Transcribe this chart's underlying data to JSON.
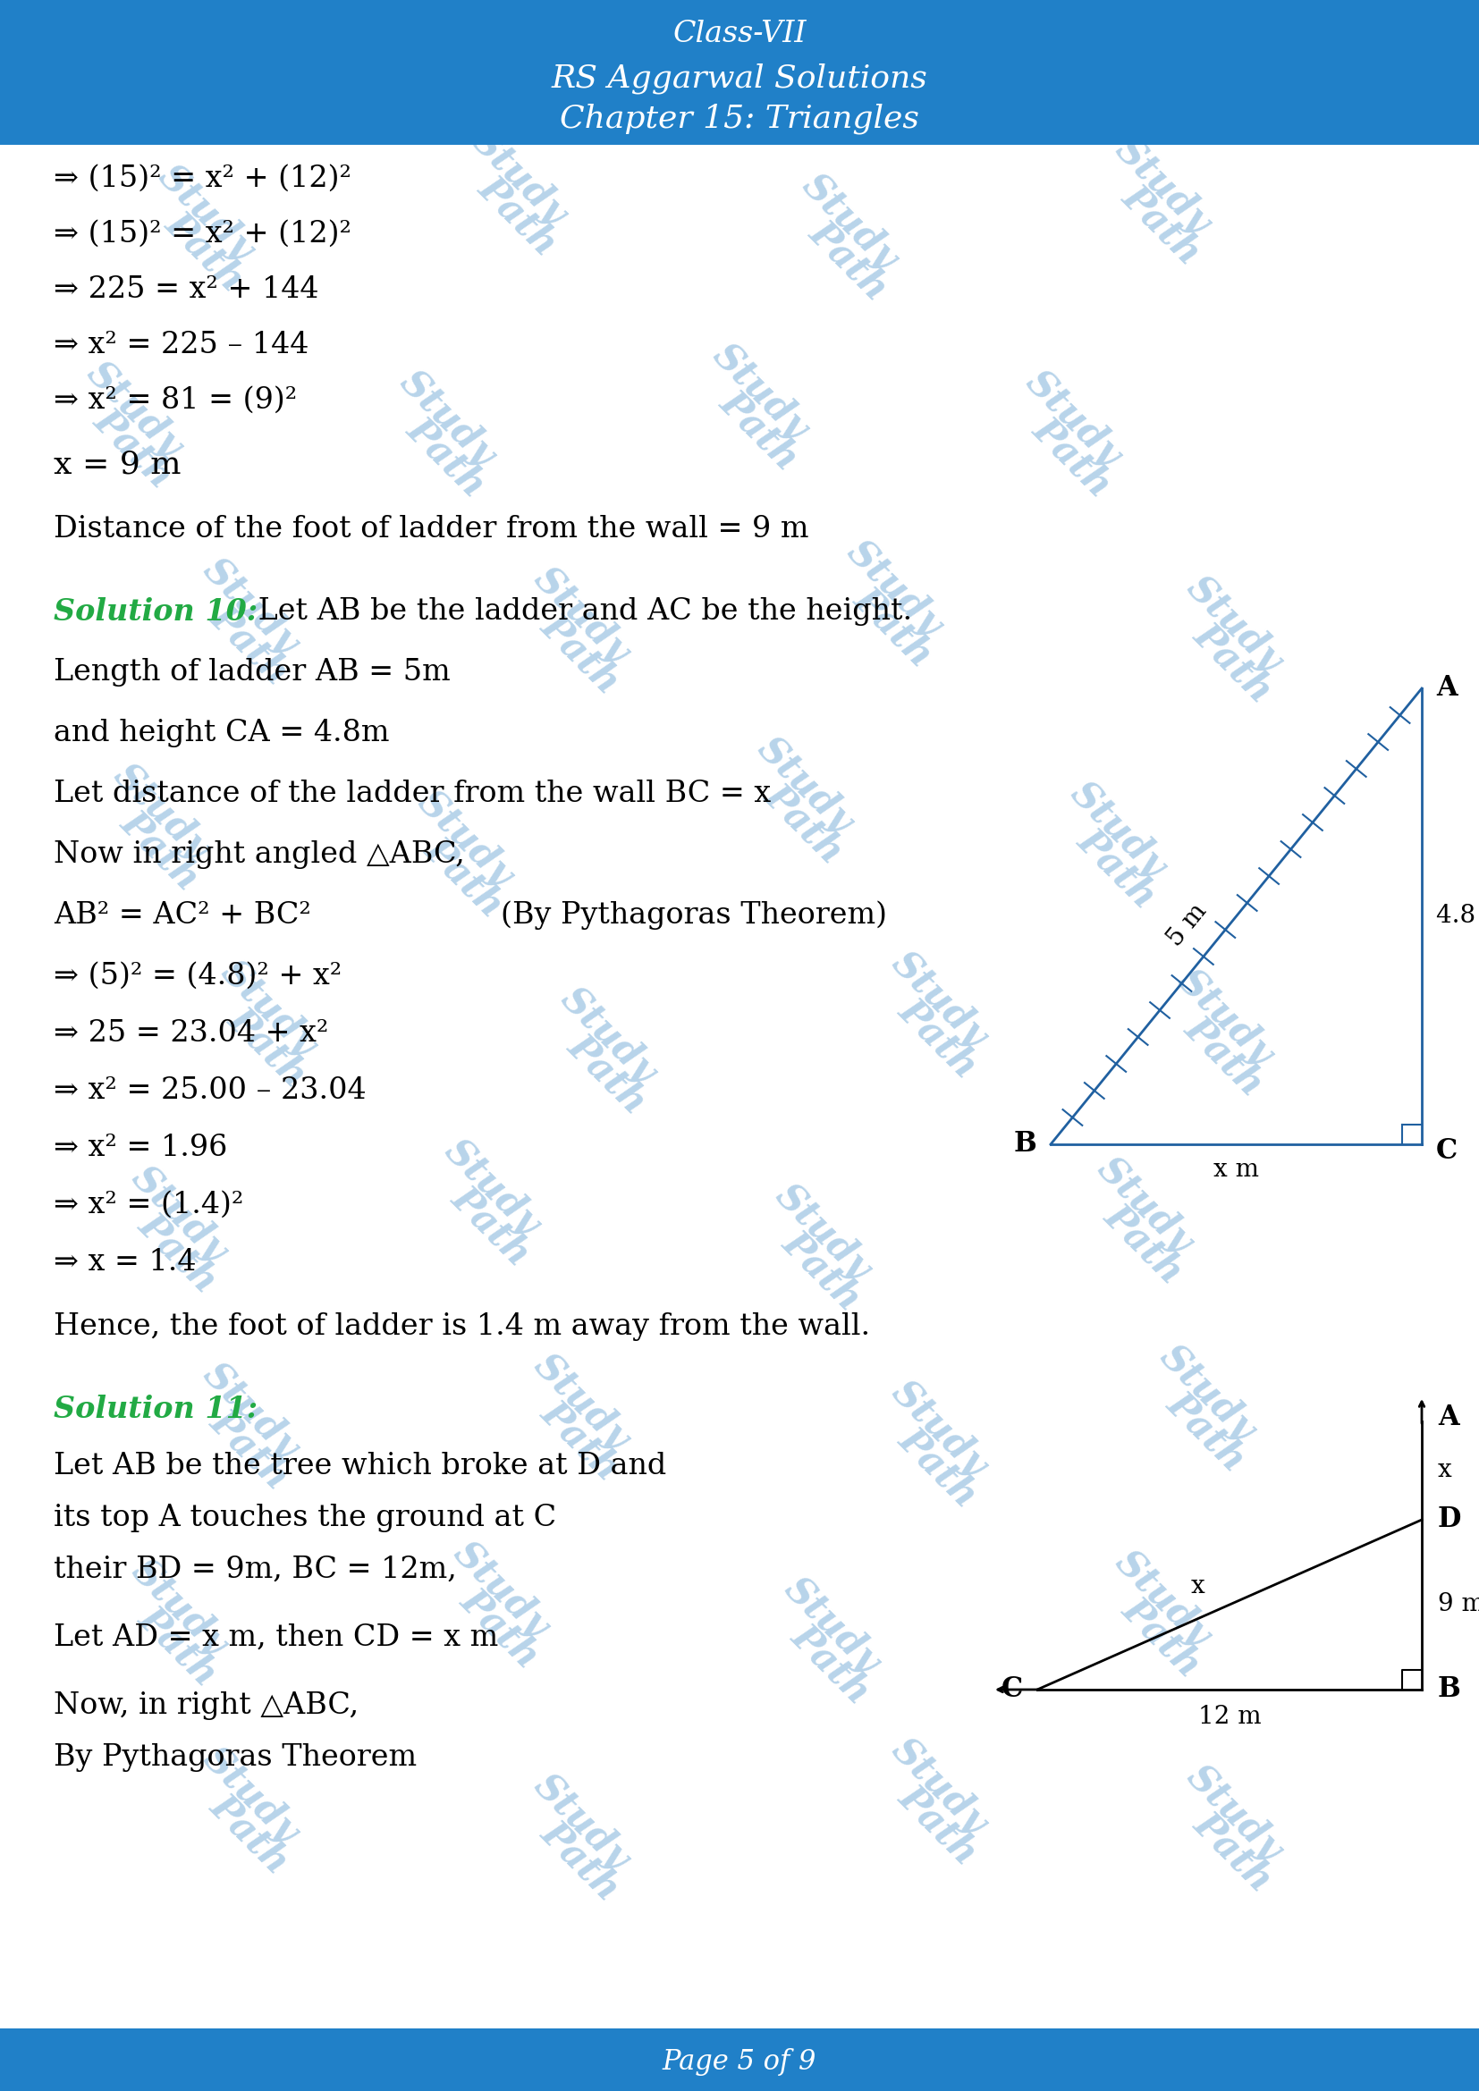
{
  "header_color": "#2080c8",
  "footer_color": "#2080c8",
  "header_text1": "Class-VII",
  "header_text2": "RS Aggarwal Solutions",
  "header_text3": "Chapter 15: Triangles",
  "footer_text": "Page 5 of 9",
  "bg_color": "#ffffff",
  "watermark_color": "#b8d4ea",
  "diagram_color": "#2060a0",
  "text_color": "#000000",
  "green_color": "#22aa44",
  "line1": "⇒ (15)² = x² + (12)²",
  "line2": "⇒ (15)² = x² + (12)²",
  "line3": "⇒ 225 = x² + 144",
  "line4": "⇒ x² = 225 – 144",
  "line5": "⇒ x² = 81 = (9)²",
  "line6": "x = 9 m",
  "line7": "Distance of the foot of ladder from the wall = 9 m",
  "sol10_head": "Solution 10:",
  "sol10_text1": " Let AB be the ladder and AC be the height.",
  "sol10_text2": "Length of ladder AB = 5m",
  "sol10_text3": "and height CA = 4.8m",
  "sol10_text4": "Let distance of the ladder from the wall BC = x",
  "sol10_text5": "Now in right angled △ABC,",
  "sol10_text6": "AB² = AC² + BC²",
  "sol10_text6b": "(By Pythagoras Theorem)",
  "sol10_text7": "⇒ (5)² = (4.8)² + x²",
  "sol10_text8": "⇒ 25 = 23.04 + x²",
  "sol10_text9": "⇒ x² = 25.00 – 23.04",
  "sol10_text10": "⇒ x² = 1.96",
  "sol10_text11": "⇒ x² = (1.4)²",
  "sol10_text12": "⇒ x = 1.4",
  "sol10_text13": "Hence, the foot of ladder is 1.4 m away from the wall.",
  "sol11_head": "Solution 11:",
  "sol11_text1": "Let AB be the tree which broke at D and",
  "sol11_text2": "its top A touches the ground at C",
  "sol11_text3": "their BD = 9m, BC = 12m,",
  "sol11_text5": "Let AD = x m, then CD = x m",
  "sol11_text7": "Now, in right △ABC,",
  "sol11_text8": "By Pythagoras Theorem"
}
